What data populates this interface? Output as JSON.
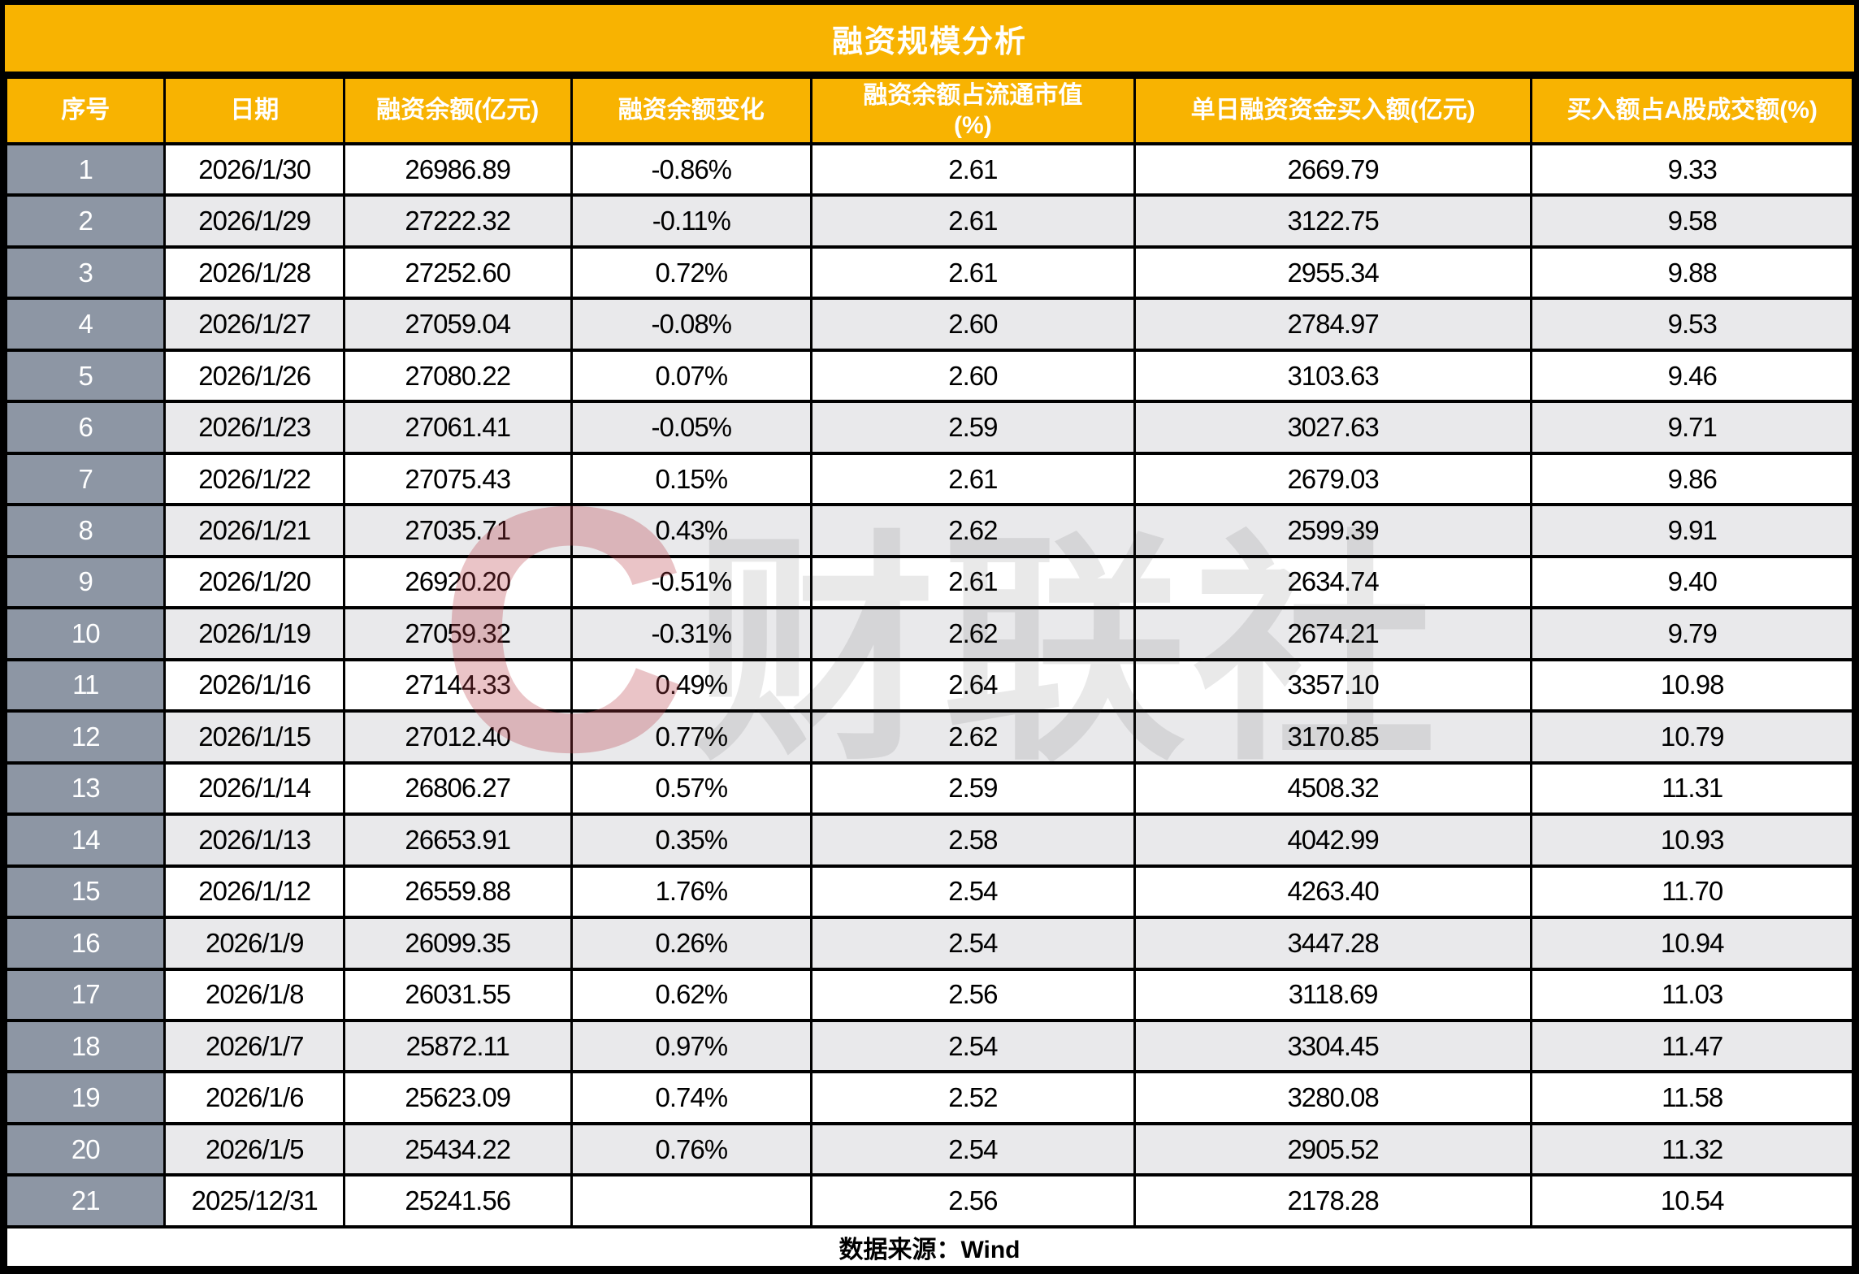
{
  "title": "融资规模分析",
  "colors": {
    "header_orange": "#F8B301",
    "serial_gray": "#8D96A4",
    "stripe_gray": "#E9E9EB",
    "border_black": "#000000",
    "watermark_red": "#BB3A46"
  },
  "watermark": {
    "letter": "C",
    "text": "财联社"
  },
  "table": {
    "display_columns": [
      "序号",
      "日期",
      "融资余额(亿元)",
      "融资余额变化",
      "融资余额占流通市值\n(%)",
      "单日融资资金买入额(亿元)",
      "买入额占A股成交额(%)"
    ]
  },
  "chart_data": {
    "type": "table",
    "title": "融资规模分析",
    "columns": [
      "序号",
      "日期",
      "融资余额(亿元)",
      "融资余额变化",
      "融资余额占流通市值(%)",
      "单日融资资金买入额(亿元)",
      "买入额占A股成交额(%)"
    ],
    "rows": [
      [
        "1",
        "2026/1/30",
        "26986.89",
        "-0.86%",
        "2.61",
        "2669.79",
        "9.33"
      ],
      [
        "2",
        "2026/1/29",
        "27222.32",
        "-0.11%",
        "2.61",
        "3122.75",
        "9.58"
      ],
      [
        "3",
        "2026/1/28",
        "27252.60",
        "0.72%",
        "2.61",
        "2955.34",
        "9.88"
      ],
      [
        "4",
        "2026/1/27",
        "27059.04",
        "-0.08%",
        "2.60",
        "2784.97",
        "9.53"
      ],
      [
        "5",
        "2026/1/26",
        "27080.22",
        "0.07%",
        "2.60",
        "3103.63",
        "9.46"
      ],
      [
        "6",
        "2026/1/23",
        "27061.41",
        "-0.05%",
        "2.59",
        "3027.63",
        "9.71"
      ],
      [
        "7",
        "2026/1/22",
        "27075.43",
        "0.15%",
        "2.61",
        "2679.03",
        "9.86"
      ],
      [
        "8",
        "2026/1/21",
        "27035.71",
        "0.43%",
        "2.62",
        "2599.39",
        "9.91"
      ],
      [
        "9",
        "2026/1/20",
        "26920.20",
        "-0.51%",
        "2.61",
        "2634.74",
        "9.40"
      ],
      [
        "10",
        "2026/1/19",
        "27059.32",
        "-0.31%",
        "2.62",
        "2674.21",
        "9.79"
      ],
      [
        "11",
        "2026/1/16",
        "27144.33",
        "0.49%",
        "2.64",
        "3357.10",
        "10.98"
      ],
      [
        "12",
        "2026/1/15",
        "27012.40",
        "0.77%",
        "2.62",
        "3170.85",
        "10.79"
      ],
      [
        "13",
        "2026/1/14",
        "26806.27",
        "0.57%",
        "2.59",
        "4508.32",
        "11.31"
      ],
      [
        "14",
        "2026/1/13",
        "26653.91",
        "0.35%",
        "2.58",
        "4042.99",
        "10.93"
      ],
      [
        "15",
        "2026/1/12",
        "26559.88",
        "1.76%",
        "2.54",
        "4263.40",
        "11.70"
      ],
      [
        "16",
        "2026/1/9",
        "26099.35",
        "0.26%",
        "2.54",
        "3447.28",
        "10.94"
      ],
      [
        "17",
        "2026/1/8",
        "26031.55",
        "0.62%",
        "2.56",
        "3118.69",
        "11.03"
      ],
      [
        "18",
        "2026/1/7",
        "25872.11",
        "0.97%",
        "2.54",
        "3304.45",
        "11.47"
      ],
      [
        "19",
        "2026/1/6",
        "25623.09",
        "0.74%",
        "2.52",
        "3280.08",
        "11.58"
      ],
      [
        "20",
        "2026/1/5",
        "25434.22",
        "0.76%",
        "2.54",
        "2905.52",
        "11.32"
      ],
      [
        "21",
        "2025/12/31",
        "25241.56",
        "",
        "2.56",
        "2178.28",
        "10.54"
      ]
    ],
    "source": "数据来源：Wind",
    "layout": {
      "header_background": "#F8B301",
      "striped_rows": true,
      "grid": true
    }
  }
}
